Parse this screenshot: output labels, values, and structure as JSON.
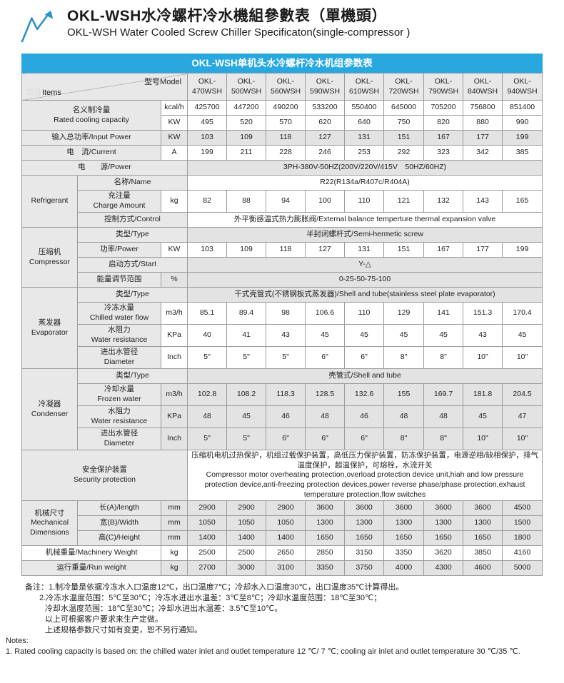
{
  "header": {
    "title_zh": "OKL-WSH水冷螺杆冷水機組參數表（單機頭）",
    "title_en": "OKL-WSH Water Cooled Screw Chiller Specificaton(single-compressor )"
  },
  "banner": {
    "text": "OKL-WSH单机头水冷螺杆冷水机组参数表"
  },
  "table": {
    "corner": {
      "items_faint": "项目",
      "items_label": "Items",
      "model_label": "型号Model"
    },
    "models": [
      "OKL-470WSH",
      "OKL-500WSH",
      "OKL-560WSH",
      "OKL-590WSH",
      "OKL-610WSH",
      "OKL-720WSH",
      "OKL-790WSH",
      "OKL-840WSH",
      "OKL-940WSH"
    ],
    "rows": [
      {
        "n": "rated-cooling-kcal",
        "s": "w",
        "cells": [
          {
            "t": "名义制冷量\nRated cooling capacity",
            "k": "lab",
            "c": 2,
            "r": 2
          },
          {
            "t": "kcal/h",
            "k": "unit"
          }
        ],
        "vals": [
          "425700",
          "447200",
          "490200",
          "533200",
          "550400",
          "645000",
          "705200",
          "756800",
          "851400"
        ]
      },
      {
        "n": "rated-cooling-kw",
        "s": "w",
        "cells": [
          {
            "t": "KW",
            "k": "unit"
          }
        ],
        "vals": [
          "495",
          "520",
          "570",
          "620",
          "640",
          "750",
          "820",
          "880",
          "990"
        ]
      },
      {
        "n": "input-power",
        "s": "g",
        "cells": [
          {
            "t": "输入总功率/Input Power",
            "k": "lab",
            "c": 2
          },
          {
            "t": "KW",
            "k": "unit"
          }
        ],
        "vals": [
          "103",
          "109",
          "118",
          "127",
          "131",
          "151",
          "167",
          "177",
          "199"
        ]
      },
      {
        "n": "current",
        "s": "w",
        "cells": [
          {
            "t": "电　流/Current",
            "k": "lab",
            "c": 2
          },
          {
            "t": "A",
            "k": "unit"
          }
        ],
        "vals": [
          "199",
          "211",
          "228",
          "246",
          "253",
          "292",
          "323",
          "342",
          "385"
        ]
      },
      {
        "n": "power-supply",
        "s": "g",
        "cells": [
          {
            "t": "电　　源/Power",
            "k": "lab",
            "c": 3
          },
          {
            "t": "3PH-380V-50HZ(200V/220V/415V　50HZ/60HZ)",
            "c": 9
          }
        ]
      },
      {
        "n": "refrigerant-name",
        "s": "w",
        "cells": [
          {
            "t": "Refrigerant",
            "k": "cat",
            "r": 3
          },
          {
            "t": "名称/Name",
            "k": "lab",
            "c": 2
          },
          {
            "t": "R22(R134a/R407c/R404A)",
            "c": 9
          }
        ]
      },
      {
        "n": "refrigerant-charge",
        "s": "w",
        "cells": [
          {
            "t": "充注量\nCharge Amount",
            "k": "lab"
          },
          {
            "t": "kg",
            "k": "unit"
          }
        ],
        "vals": [
          "82",
          "88",
          "94",
          "100",
          "110",
          "121",
          "132",
          "143",
          "165"
        ]
      },
      {
        "n": "refrigerant-control",
        "s": "w",
        "cells": [
          {
            "t": "控制方式/Control",
            "k": "lab",
            "c": 2
          },
          {
            "t": "外平衡感温式热力膨胀阀/External balance temperture thermal expansion valve",
            "c": 9
          }
        ]
      },
      {
        "n": "compressor-type",
        "s": "g",
        "cells": [
          {
            "t": "压缩机\nCompressor",
            "k": "cat",
            "r": 4
          },
          {
            "t": "类型/Type",
            "k": "lab",
            "c": 2
          },
          {
            "t": "半封闭螺杆式/Semi-hermetic screw",
            "c": 9
          }
        ]
      },
      {
        "n": "compressor-power",
        "s": "w",
        "cells": [
          {
            "t": "功率/Power",
            "k": "lab"
          },
          {
            "t": "KW",
            "k": "unit"
          }
        ],
        "vals": [
          "103",
          "109",
          "118",
          "127",
          "131",
          "151",
          "167",
          "177",
          "199"
        ]
      },
      {
        "n": "compressor-start",
        "s": "g",
        "cells": [
          {
            "t": "启动方式/Start",
            "k": "lab",
            "c": 2
          },
          {
            "t": "Y-△",
            "c": 9
          }
        ]
      },
      {
        "n": "energy-range",
        "s": "g",
        "cells": [
          {
            "t": "能量调节范围",
            "k": "lab"
          },
          {
            "t": "%",
            "k": "unit"
          },
          {
            "t": "0-25-50-75-100",
            "c": 9
          }
        ]
      },
      {
        "n": "evaporator-type",
        "s": "g",
        "cells": [
          {
            "t": "蒸发器\nEvaporator",
            "k": "cat",
            "r": 4
          },
          {
            "t": "类型/Type",
            "k": "lab",
            "c": 2
          },
          {
            "t": "干式壳管式(不锈钢板式蒸发器)/Shell and tube(stainless steel plate evaporator)",
            "c": 9
          }
        ]
      },
      {
        "n": "chilled-water-flow",
        "s": "w",
        "cells": [
          {
            "t": "冷冻水量\nChilled water flow",
            "k": "lab"
          },
          {
            "t": "m3/h",
            "k": "unit"
          }
        ],
        "vals": [
          "85.1",
          "89.4",
          "98",
          "106.6",
          "110",
          "129",
          "141",
          "151.3",
          "170.4"
        ]
      },
      {
        "n": "evap-water-resistance",
        "s": "w",
        "cells": [
          {
            "t": "水阻力\nWater resistance",
            "k": "lab"
          },
          {
            "t": "KPa",
            "k": "unit"
          }
        ],
        "vals": [
          "40",
          "41",
          "43",
          "45",
          "45",
          "45",
          "45",
          "43",
          "45"
        ]
      },
      {
        "n": "evap-pipe-diameter",
        "s": "w",
        "cells": [
          {
            "t": "进出水管径\nDiameter",
            "k": "lab"
          },
          {
            "t": "Inch",
            "k": "unit"
          }
        ],
        "vals": [
          "5\"",
          "5\"",
          "5\"",
          "6\"",
          "6\"",
          "8\"",
          "8\"",
          "10\"",
          "10\""
        ]
      },
      {
        "n": "condenser-type",
        "s": "g",
        "cells": [
          {
            "t": "冷凝器\nCondenser",
            "k": "cat",
            "r": 4
          },
          {
            "t": "类型/Type",
            "k": "lab",
            "c": 2
          },
          {
            "t": "壳管式/Shell and tube",
            "c": 9
          }
        ]
      },
      {
        "n": "frozen-water-flow",
        "s": "g",
        "cells": [
          {
            "t": "冷却水量\nFrozen water",
            "k": "lab"
          },
          {
            "t": "m3/h",
            "k": "unit"
          }
        ],
        "vals": [
          "102.8",
          "108.2",
          "118.3",
          "128.5",
          "132.6",
          "155",
          "169.7",
          "181.8",
          "204.5"
        ]
      },
      {
        "n": "cond-water-resistance",
        "s": "g",
        "cells": [
          {
            "t": "水阻力\nWater resistance",
            "k": "lab"
          },
          {
            "t": "KPa",
            "k": "unit"
          }
        ],
        "vals": [
          "48",
          "45",
          "46",
          "48",
          "46",
          "48",
          "48",
          "45",
          "47"
        ]
      },
      {
        "n": "cond-pipe-diameter",
        "s": "g",
        "cells": [
          {
            "t": "进出水管径\nDiameter",
            "k": "lab"
          },
          {
            "t": "Inch",
            "k": "unit"
          }
        ],
        "vals": [
          "5\"",
          "5\"",
          "6\"",
          "6\"",
          "6\"",
          "8\"",
          "8\"",
          "10\"",
          "10\""
        ]
      },
      {
        "n": "security-protection",
        "s": "w",
        "cells": [
          {
            "t": "安全保护装置\nSecurity protection",
            "k": "lab",
            "c": 3
          },
          {
            "t": "压缩机电机过热保护，机组过载保护装置，高低压力保护装置，防冻保护装置，电源逆相/缺相保护，排气温度保护，超温保护，可熔栓，水流开关\nCompressor motor overheating protection,overload protection device unit,hiah and low pressure protection device,anti-freezing protection devices,power reverse phase/phase protection,exhaust temperature protection,flow switches",
            "c": 9,
            "a": "l"
          }
        ]
      },
      {
        "n": "dim-length",
        "s": "g",
        "cells": [
          {
            "t": "机械尺寸\nMechanical\nDimensions",
            "k": "cat",
            "r": 3
          },
          {
            "t": "长(A)/length",
            "k": "lab"
          },
          {
            "t": "mm",
            "k": "unit"
          }
        ],
        "vals": [
          "2900",
          "2900",
          "2900",
          "3600",
          "3600",
          "3600",
          "3600",
          "3600",
          "4500"
        ]
      },
      {
        "n": "dim-width",
        "s": "g",
        "cells": [
          {
            "t": "宽(B)/Width",
            "k": "lab"
          },
          {
            "t": "mm",
            "k": "unit"
          }
        ],
        "vals": [
          "1050",
          "1050",
          "1050",
          "1300",
          "1300",
          "1300",
          "1300",
          "1300",
          "1500"
        ]
      },
      {
        "n": "dim-height",
        "s": "g",
        "cells": [
          {
            "t": "高(C)/Height",
            "k": "lab"
          },
          {
            "t": "mm",
            "k": "unit"
          }
        ],
        "vals": [
          "1400",
          "1400",
          "1400",
          "1650",
          "1650",
          "1650",
          "1650",
          "1650",
          "1800"
        ]
      },
      {
        "n": "machinery-weight",
        "s": "w",
        "cells": [
          {
            "t": "机械重量/Machinery Weight",
            "k": "lab",
            "c": 2,
            "cs": "w"
          },
          {
            "t": "kg",
            "k": "unit"
          }
        ],
        "vals": [
          "2500",
          "2500",
          "2650",
          "2850",
          "3150",
          "3350",
          "3620",
          "3850",
          "4160"
        ]
      },
      {
        "n": "run-weight",
        "s": "g",
        "cells": [
          {
            "t": "运行重量/Run weight",
            "k": "lab",
            "c": 2
          },
          {
            "t": "kg",
            "k": "unit"
          }
        ],
        "vals": [
          "2700",
          "3000",
          "3100",
          "3350",
          "3750",
          "4000",
          "4300",
          "4600",
          "5000"
        ]
      }
    ]
  },
  "notes": {
    "lines": [
      {
        "text": "备注：1.制冷量是依据冷冻水入口温度12℃，出口温度7℃；冷却水入口温度30℃，出口温度35℃计算得出。",
        "indent": 1
      },
      {
        "text": "2.冷冻水温度范围：5℃至30℃；冷冻水进出水温差：3℃至8℃；冷却水温度范围：18℃至30℃；",
        "indent": 2
      },
      {
        "text": "冷却水温度范围：18℃至30℃；冷却水进出水温差：3.5℃至10℃。",
        "indent": 3
      },
      {
        "text": "以上可根据客户要求来生产定做。",
        "indent": 3
      },
      {
        "text": "上述规格参数尺寸如有变更，恕不另行通知。",
        "indent": 3
      },
      {
        "text": "Notes:",
        "indent": 0
      },
      {
        "text": "1. Rated cooling capacity is based on: the chilled water inlet and outlet temperature 12 ℃/ 7 ℃; cooling air inlet and outlet temperature 30 ℃/35 ℃.",
        "indent": 0
      }
    ]
  }
}
